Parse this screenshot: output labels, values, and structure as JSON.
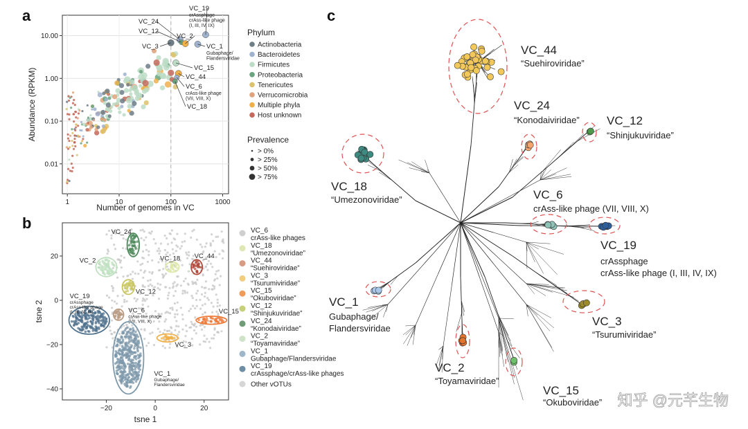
{
  "panel_letters": {
    "a": "a",
    "b": "b",
    "c": "c"
  },
  "watermark": "知乎 @元芊生物",
  "colors": {
    "Actinobacteria": "#6f7d87",
    "Bacteroidetes": "#9fb3cf",
    "Firmicutes": "#bcdcc6",
    "Proteobacteria": "#6aa57f",
    "Tenericutes": "#dcc26f",
    "Verrucomicrobia": "#e0a27a",
    "Multiple phyla": "#efb04a",
    "Host unknown": "#c36a5c",
    "grey": "#c9c9c9",
    "red_dash": "#e05050"
  },
  "chart_data": [
    {
      "id": "a",
      "type": "scatter",
      "xlabel": "Number of genomes in VC",
      "ylabel": "Abundance (RPKM)",
      "x_scale": "log",
      "y_scale": "log",
      "xlim": [
        0.8,
        1300
      ],
      "ylim": [
        0.002,
        30
      ],
      "x_ticks": [
        1,
        10,
        100,
        1000
      ],
      "x_tick_labels": [
        "1",
        "10",
        "100",
        "1000"
      ],
      "y_ticks": [
        0.01,
        0.1,
        1,
        10
      ],
      "y_tick_labels": [
        "0.01",
        "0.10",
        "1.00",
        "10.00"
      ],
      "reference_line_x": 100,
      "legend_phylum_title": "Phylum",
      "legend_phylum": [
        "Actinobacteria",
        "Bacteroidetes",
        "Firmicutes",
        "Proteobacteria",
        "Tenericutes",
        "Verrucomicrobia",
        "Multiple phyla",
        "Host unknown"
      ],
      "legend_prevalence_title": "Prevalence",
      "legend_prevalence": [
        "> 0%",
        "> 25%",
        "> 50%",
        "> 75%"
      ],
      "labeled_points": [
        {
          "label": "VC_24",
          "sub": "",
          "x": 150,
          "y": 8.0,
          "phylum": "Bacteroidetes",
          "prev": 3
        },
        {
          "label": "VC_12",
          "sub": "",
          "x": 160,
          "y": 7.0,
          "phylum": "Proteobacteria",
          "prev": 2
        },
        {
          "label": "VC_2",
          "sub": "",
          "x": 190,
          "y": 6.5,
          "phylum": "Multiple phyla",
          "prev": 3
        },
        {
          "label": "VC_3",
          "sub": "",
          "x": 100,
          "y": 6.8,
          "phylum": "Actinobacteria",
          "prev": 3
        },
        {
          "label": "VC_19",
          "sub": "crAssphage|crAss-like phage|(I, III, IV, IX)",
          "x": 470,
          "y": 10.5,
          "phylum": "Bacteroidetes",
          "prev": 3
        },
        {
          "label": "VC_1",
          "sub": "Gubaphage/|Flandersviridae",
          "x": 330,
          "y": 6.3,
          "phylum": "Bacteroidetes",
          "prev": 3
        },
        {
          "label": "VC_15",
          "sub": "",
          "x": 125,
          "y": 2.3,
          "phylum": "Firmicutes",
          "prev": 3
        },
        {
          "label": "VC_44",
          "sub": "",
          "x": 140,
          "y": 1.3,
          "phylum": "Multiple phyla",
          "prev": 3
        },
        {
          "label": "VC_6",
          "sub": "crAss-like phage|(VII, VIII, X)",
          "x": 130,
          "y": 1.05,
          "phylum": "Bacteroidetes",
          "prev": 2
        },
        {
          "label": "VC_18",
          "sub": "",
          "x": 120,
          "y": 0.85,
          "phylum": "Proteobacteria",
          "prev": 2
        }
      ]
    },
    {
      "id": "b",
      "type": "scatter",
      "xlabel": "tsne 1",
      "ylabel": "tsne 2",
      "xlim": [
        -38,
        30
      ],
      "ylim": [
        -45,
        35
      ],
      "x_ticks": [
        -20,
        0,
        20
      ],
      "x_tick_labels": [
        "−20",
        "0",
        "20"
      ],
      "y_ticks": [
        -40,
        -20,
        0,
        20
      ],
      "y_tick_labels": [
        "−40",
        "−20",
        "0",
        "20"
      ],
      "legend": [
        {
          "name": "VC_6",
          "sub": "crAss-like phages",
          "color": "#cfcfcf"
        },
        {
          "name": "VC_18",
          "sub": "“Umezonoviridae”",
          "color": "#dfe7b5"
        },
        {
          "name": "VC_44",
          "sub": "“Suehiroviridae”",
          "color": "#d79a83"
        },
        {
          "name": "VC_3",
          "sub": "“Tsurumiviridae”",
          "color": "#f2cd7f"
        },
        {
          "name": "VC_15",
          "sub": "“Okuboviridae”",
          "color": "#ef9b5c"
        },
        {
          "name": "VC_12",
          "sub": "“Shinjukuviridae”",
          "color": "#c7cf7a"
        },
        {
          "name": "VC_24",
          "sub": "“Konodaiviridae”",
          "color": "#6f9b78"
        },
        {
          "name": "VC_2",
          "sub": "“Toyamaviridae”",
          "color": "#cfe3c8"
        },
        {
          "name": "VC_1",
          "sub": "Gubaphage/Flandersviridae",
          "color": "#9fb7c9"
        },
        {
          "name": "VC_19",
          "sub": "crAssphage/crAss-like phages",
          "color": "#6f8ea5"
        },
        {
          "name": "Other vOTUs",
          "sub": "",
          "color": "#d6d6d6"
        }
      ],
      "clusters": [
        {
          "label": "VC_24",
          "sub": "",
          "cx": -9,
          "cy": 25,
          "rx": 2.2,
          "ry": 5,
          "color": "#4f8a5c"
        },
        {
          "label": "VC_2",
          "sub": "",
          "cx": -20,
          "cy": 15,
          "rx": 4,
          "ry": 4,
          "color": "#bfe0c0"
        },
        {
          "label": "VC_18",
          "sub": "",
          "cx": 7,
          "cy": 15,
          "rx": 2.5,
          "ry": 2,
          "color": "#dfe8a8"
        },
        {
          "label": "VC_44",
          "sub": "",
          "cx": 17,
          "cy": 15,
          "rx": 2,
          "ry": 3,
          "color": "#b2483a"
        },
        {
          "label": "VC_12",
          "sub": "",
          "cx": -11,
          "cy": 6,
          "rx": 2.2,
          "ry": 3,
          "color": "#c9c65f"
        },
        {
          "label": "VC_19",
          "sub": "crAssphage|crAss-like phage|(I, III, IV, IX)",
          "cx": -27,
          "cy": -9,
          "rx": 8,
          "ry": 6,
          "color": "#50728d"
        },
        {
          "label": "VC_6",
          "sub": "crAss-like phage|(VII, VIII, X)",
          "cx": -15,
          "cy": -6.5,
          "rx": 1.8,
          "ry": 2.2,
          "color": "#b89a80"
        },
        {
          "label": "VC_15",
          "sub": "",
          "cx": 23,
          "cy": -9,
          "rx": 6,
          "ry": 1.5,
          "color": "#ef7a38"
        },
        {
          "label": "VC_3",
          "sub": "",
          "cx": 5,
          "cy": -17,
          "rx": 4,
          "ry": 1.5,
          "color": "#f0b04a"
        },
        {
          "label": "VC_1",
          "sub": "Gubaphage/|Flandersviridae",
          "cx": -11,
          "cy": -26,
          "rx": 6,
          "ry": 16,
          "color": "#7d98ab"
        }
      ]
    },
    {
      "id": "c",
      "type": "tree",
      "clades": [
        {
          "label": "VC_44",
          "sub": "“Suehiroviridae”",
          "color": "#f2c85a"
        },
        {
          "label": "VC_24",
          "sub": "“Konodaiviridae”",
          "color": "#f4a46c"
        },
        {
          "label": "VC_12",
          "sub": "“Shinjukuviridae”",
          "color": "#4f9a4a"
        },
        {
          "label": "VC_18",
          "sub": "“Umezonoviridae”",
          "color": "#3f8a80"
        },
        {
          "label": "VC_6",
          "sub": "crAss-like phage (VII, VIII, X)",
          "color": "#8fc3b8"
        },
        {
          "label": "VC_19",
          "sub": "crAssphage|crAss-like phage (I, III, IV, IX)",
          "color": "#2f5f9a"
        },
        {
          "label": "VC_1",
          "sub": "Gubaphage/|Flandersviridae",
          "color": "#a9c7e8"
        },
        {
          "label": "VC_3",
          "sub": "“Tsurumiviridae”",
          "color": "#9a8a2a"
        },
        {
          "label": "VC_2",
          "sub": "“Toyamaviridae”",
          "color": "#e2742e"
        },
        {
          "label": "VC_15",
          "sub": "“Okuboviridae”",
          "color": "#6fc06a"
        }
      ]
    }
  ]
}
